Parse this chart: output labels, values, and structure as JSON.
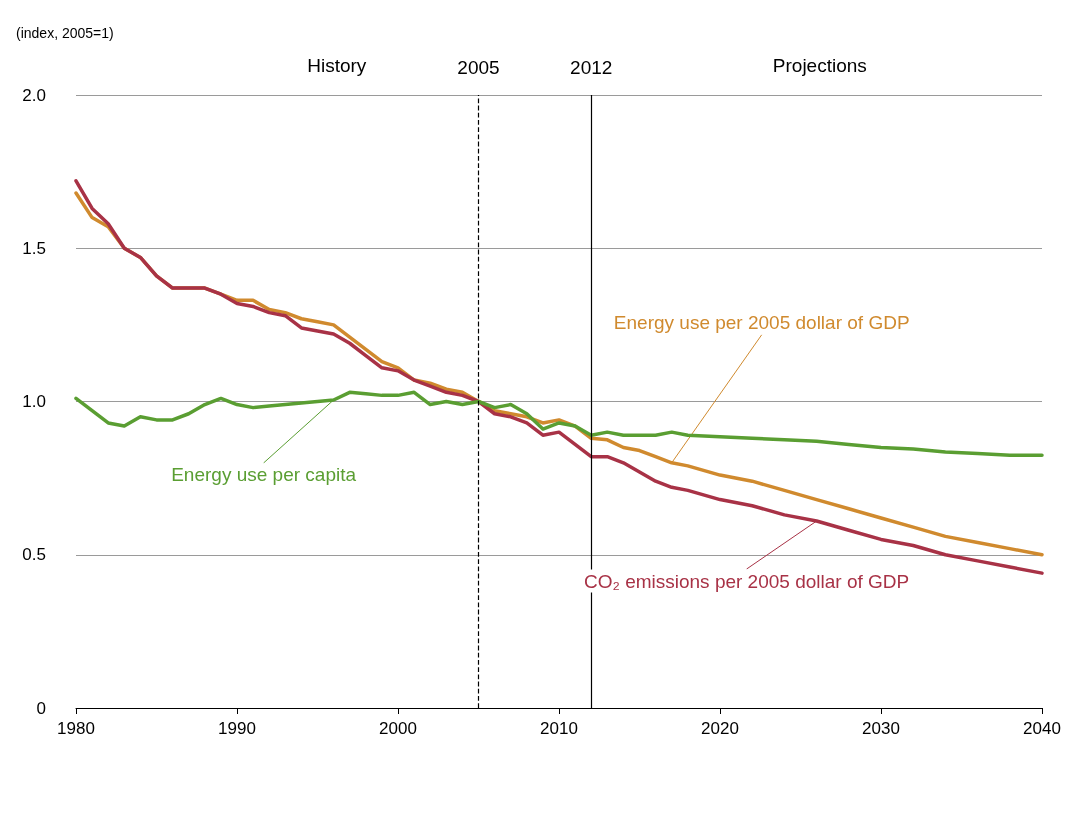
{
  "chart_data": {
    "type": "line",
    "ylabel": "(index, 2005=1)",
    "xlim": [
      1980,
      2040
    ],
    "xticks": [
      1980,
      1990,
      2000,
      2010,
      2020,
      2030,
      2040
    ],
    "ylim": [
      0,
      2
    ],
    "yticks": [
      0,
      0.5,
      {
        "value": 1,
        "label": "1.0"
      },
      1.5,
      {
        "value": 2,
        "label": "2.0"
      }
    ],
    "grid": "y",
    "legend": false,
    "marker": "none",
    "line_style": "solid",
    "ref_lines": [
      {
        "axis": "x",
        "value": 2005,
        "label": "2005",
        "line_style": "dashed",
        "color": "#000000"
      },
      {
        "axis": "x",
        "value": 2012,
        "label": "2012",
        "line_style": "solid",
        "color": "#000000"
      }
    ],
    "annotations": [
      "History",
      "Projections"
    ],
    "series": [
      {
        "name": "Energy use per 2005 dollar of GDP",
        "color": "#d08a2e",
        "x": [
          1980,
          1981,
          1982,
          1983,
          1984,
          1985,
          1986,
          1987,
          1988,
          1989,
          1990,
          1991,
          1992,
          1993,
          1994,
          1995,
          1996,
          1997,
          1998,
          1999,
          2000,
          2001,
          2002,
          2003,
          2004,
          2005,
          2006,
          2007,
          2008,
          2009,
          2010,
          2011,
          2012,
          2013,
          2014,
          2015,
          2016,
          2017,
          2018,
          2020,
          2022,
          2024,
          2026,
          2028,
          2030,
          2032,
          2034,
          2036,
          2038,
          2040
        ],
        "values": [
          1.68,
          1.6,
          1.57,
          1.5,
          1.47,
          1.41,
          1.37,
          1.37,
          1.37,
          1.35,
          1.33,
          1.33,
          1.3,
          1.29,
          1.27,
          1.26,
          1.25,
          1.21,
          1.17,
          1.13,
          1.11,
          1.07,
          1.06,
          1.04,
          1.03,
          1.0,
          0.97,
          0.96,
          0.95,
          0.93,
          0.94,
          0.92,
          0.88,
          0.875,
          0.85,
          0.84,
          0.82,
          0.8,
          0.79,
          0.76,
          0.74,
          0.71,
          0.68,
          0.65,
          0.62,
          0.59,
          0.56,
          0.54,
          0.52,
          0.5
        ]
      },
      {
        "name": "CO₂ emissions per 2005 dollar of GDP",
        "color": "#a83246",
        "x": [
          1980,
          1981,
          1982,
          1983,
          1984,
          1985,
          1986,
          1987,
          1988,
          1989,
          1990,
          1991,
          1992,
          1993,
          1994,
          1995,
          1996,
          1997,
          1998,
          1999,
          2000,
          2001,
          2002,
          2003,
          2004,
          2005,
          2006,
          2007,
          2008,
          2009,
          2010,
          2011,
          2012,
          2013,
          2014,
          2015,
          2016,
          2017,
          2018,
          2020,
          2022,
          2024,
          2026,
          2028,
          2030,
          2032,
          2034,
          2036,
          2038,
          2040
        ],
        "values": [
          1.72,
          1.63,
          1.58,
          1.5,
          1.47,
          1.41,
          1.37,
          1.37,
          1.37,
          1.35,
          1.32,
          1.31,
          1.29,
          1.28,
          1.24,
          1.23,
          1.22,
          1.19,
          1.15,
          1.11,
          1.1,
          1.07,
          1.05,
          1.03,
          1.02,
          1.0,
          0.96,
          0.95,
          0.93,
          0.89,
          0.9,
          0.86,
          0.82,
          0.82,
          0.8,
          0.77,
          0.74,
          0.72,
          0.71,
          0.68,
          0.66,
          0.63,
          0.61,
          0.58,
          0.55,
          0.53,
          0.5,
          0.48,
          0.46,
          0.44
        ]
      },
      {
        "name": "Energy use per capita",
        "color": "#5a9e32",
        "x": [
          1980,
          1981,
          1982,
          1983,
          1984,
          1985,
          1986,
          1987,
          1988,
          1989,
          1990,
          1991,
          1992,
          1993,
          1994,
          1995,
          1996,
          1997,
          1998,
          1999,
          2000,
          2001,
          2002,
          2003,
          2004,
          2005,
          2006,
          2007,
          2008,
          2009,
          2010,
          2011,
          2012,
          2013,
          2014,
          2016,
          2017,
          2018,
          2020,
          2022,
          2024,
          2026,
          2028,
          2030,
          2032,
          2034,
          2036,
          2038,
          2040
        ],
        "values": [
          1.01,
          0.97,
          0.93,
          0.92,
          0.95,
          0.94,
          0.94,
          0.96,
          0.99,
          1.01,
          0.99,
          0.98,
          0.985,
          0.99,
          0.995,
          1.0,
          1.005,
          1.03,
          1.025,
          1.02,
          1.02,
          1.03,
          0.99,
          1.0,
          0.99,
          1.0,
          0.98,
          0.99,
          0.96,
          0.91,
          0.93,
          0.92,
          0.89,
          0.9,
          0.89,
          0.89,
          0.9,
          0.89,
          0.885,
          0.88,
          0.875,
          0.87,
          0.86,
          0.85,
          0.845,
          0.835,
          0.83,
          0.825,
          0.825
        ]
      }
    ]
  }
}
